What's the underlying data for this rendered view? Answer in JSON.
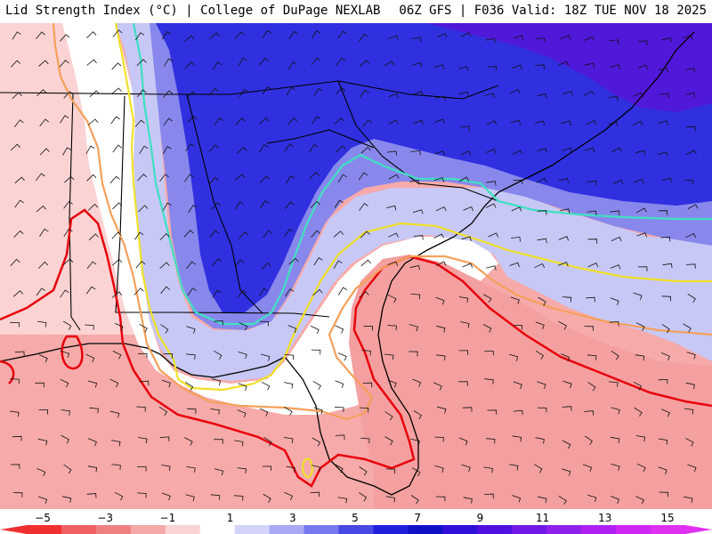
{
  "header": {
    "title_left": "Lid Strength Index (°C) | College of DuPage NEXLAB",
    "title_right": "06Z GFS | F036 Valid: 18Z TUE NOV 18 2025"
  },
  "map": {
    "region": "Southeastern United States",
    "field": "Lid Strength Index",
    "features": [
      "shaded-fill",
      "contour-lines",
      "wind-barbs",
      "state-borders",
      "county-borders",
      "coastline"
    ],
    "contour_colors": {
      "minus_3": "#e8000b",
      "minus_1": "#f5a05a",
      "plus_1": "#f0e02a",
      "plus_5": "#40e0c0"
    }
  },
  "colorbar": {
    "ticks": [
      "−5",
      "−3",
      "−1",
      "1",
      "3",
      "5",
      "7",
      "9",
      "11",
      "13",
      "15"
    ],
    "colors": [
      "#f03030",
      "#f06060",
      "#f08080",
      "#f4a8a8",
      "#fad4d4",
      "#ffffff",
      "#d4d4fa",
      "#a8a8f4",
      "#7878ee",
      "#4848e4",
      "#2020dc",
      "#1010c8",
      "#3010d8",
      "#5010e0",
      "#7018e8",
      "#9020ec",
      "#b020f0",
      "#d028f4",
      "#e030f0"
    ]
  }
}
